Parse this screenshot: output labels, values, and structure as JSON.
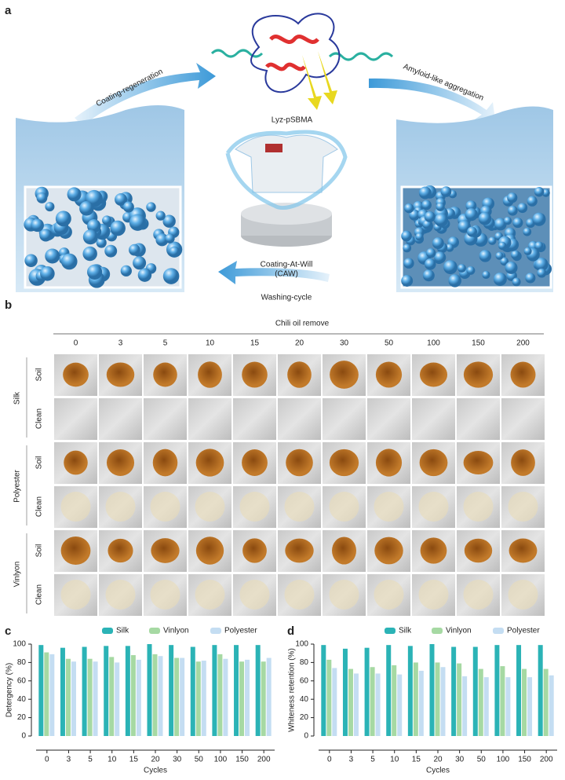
{
  "panel_a": {
    "label": "a",
    "protein": "Lyz-pSBMA",
    "left_arrow": "Coating-regeneration",
    "right_arrow": "Amyloid-like aggregation",
    "device": [
      "Coating-At-Will",
      "(CAW)"
    ],
    "bottom_arrow": "Washing-cycle"
  },
  "panel_b": {
    "label": "b",
    "title": "Chili oil remove",
    "columns": [
      "0",
      "3",
      "5",
      "10",
      "15",
      "20",
      "30",
      "50",
      "100",
      "150",
      "200"
    ],
    "groups": [
      {
        "name": "Silk",
        "rows": [
          "Soil",
          "Clean"
        ]
      },
      {
        "name": "Polyester",
        "rows": [
          "Soil",
          "Clean"
        ]
      },
      {
        "name": "Vinlyon",
        "rows": [
          "Soil",
          "Clean"
        ]
      }
    ]
  },
  "chart_data": [
    {
      "type": "bar",
      "label": "c",
      "ylabel": "Detergency (%)",
      "xlabel": "Cycles",
      "categories": [
        "0",
        "3",
        "5",
        "10",
        "15",
        "20",
        "30",
        "50",
        "100",
        "150",
        "200"
      ],
      "series": [
        {
          "name": "Silk",
          "color": "#2bb3b6",
          "values": [
            99,
            96,
            97,
            98,
            98,
            100,
            99,
            97,
            99,
            99,
            99
          ]
        },
        {
          "name": "Vinlyon",
          "color": "#a6d9a3",
          "values": [
            91,
            84,
            84,
            86,
            88,
            89,
            85,
            81,
            89,
            81,
            81
          ]
        },
        {
          "name": "Polyester",
          "color": "#c4ddf2",
          "values": [
            89,
            81,
            81,
            80,
            83,
            87,
            85,
            82,
            84,
            83,
            85
          ]
        }
      ],
      "ylim": [
        0,
        100
      ],
      "yticks": [
        0,
        20,
        40,
        60,
        80,
        100
      ],
      "legend": "top"
    },
    {
      "type": "bar",
      "label": "d",
      "ylabel": "Whiteness retention (%)",
      "xlabel": "Cycles",
      "categories": [
        "0",
        "3",
        "5",
        "10",
        "15",
        "20",
        "30",
        "50",
        "100",
        "150",
        "200"
      ],
      "series": [
        {
          "name": "Silk",
          "color": "#2bb3b6",
          "values": [
            99,
            95,
            96,
            99,
            98,
            100,
            97,
            97,
            99,
            99,
            99
          ]
        },
        {
          "name": "Vinlyon",
          "color": "#a6d9a3",
          "values": [
            83,
            73,
            75,
            77,
            80,
            80,
            79,
            73,
            76,
            73,
            73
          ]
        },
        {
          "name": "Polyester",
          "color": "#c4ddf2",
          "values": [
            74,
            68,
            68,
            67,
            71,
            75,
            65,
            64,
            64,
            64,
            66
          ]
        }
      ],
      "ylim": [
        0,
        100
      ],
      "yticks": [
        0,
        20,
        40,
        60,
        80,
        100
      ],
      "legend": "top"
    }
  ]
}
